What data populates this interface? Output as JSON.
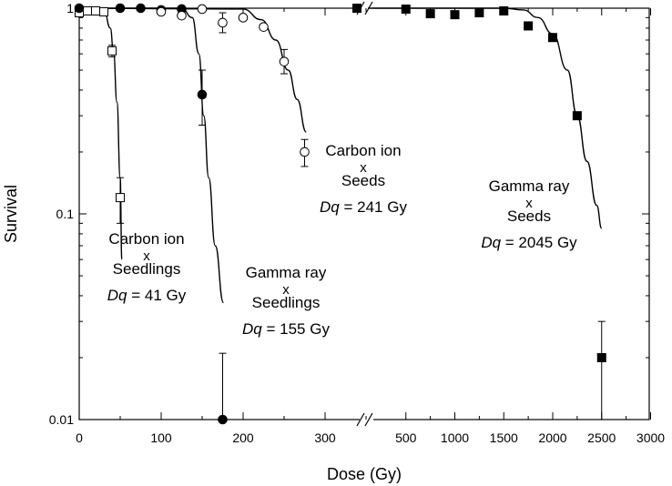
{
  "chart_data": {
    "type": "scatter",
    "title": "",
    "xlabel": "Dose (Gy)",
    "ylabel": "Survival",
    "yscale": "log",
    "ylim": [
      0.01,
      1
    ],
    "xaxis_break": true,
    "xlim_left": [
      0,
      350
    ],
    "xlim_right": [
      0,
      3000
    ],
    "xticks_left": [
      "0",
      "100",
      "200",
      "300"
    ],
    "xticks_right": [
      "500",
      "1000",
      "1500",
      "2000",
      "2500",
      "3000"
    ],
    "yticks": [
      "0.01",
      "0.1",
      "1"
    ],
    "grid": false,
    "legend": "none",
    "series": [
      {
        "marker": "open-square",
        "segment": "left",
        "points": [
          {
            "x": 0,
            "y": 0.95
          },
          {
            "x": 10,
            "y": 0.97
          },
          {
            "x": 20,
            "y": 0.97
          },
          {
            "x": 30,
            "y": 0.96
          },
          {
            "x": 40,
            "y": 0.62,
            "err_low": 0.58,
            "err_high": 0.66
          },
          {
            "x": 50,
            "y": 0.12,
            "err_low": 0.09,
            "err_high": 0.15
          }
        ]
      },
      {
        "marker": "filled-circle",
        "segment": "left",
        "points": [
          {
            "x": 0,
            "y": 1.0
          },
          {
            "x": 50,
            "y": 1.0
          },
          {
            "x": 75,
            "y": 1.0
          },
          {
            "x": 100,
            "y": 0.98
          },
          {
            "x": 125,
            "y": 0.99
          },
          {
            "x": 150,
            "y": 0.38,
            "err_low": 0.27,
            "err_high": 0.5
          },
          {
            "x": 175,
            "y": 0.01,
            "err_low": 0.01,
            "err_high": 0.021
          }
        ]
      },
      {
        "marker": "open-circle",
        "segment": "left",
        "points": [
          {
            "x": 100,
            "y": 0.96
          },
          {
            "x": 125,
            "y": 0.92
          },
          {
            "x": 150,
            "y": 0.99
          },
          {
            "x": 175,
            "y": 0.85,
            "err_low": 0.76,
            "err_high": 0.95
          },
          {
            "x": 200,
            "y": 0.9
          },
          {
            "x": 225,
            "y": 0.81
          },
          {
            "x": 250,
            "y": 0.55,
            "err_low": 0.48,
            "err_high": 0.63
          },
          {
            "x": 275,
            "y": 0.2,
            "err_low": 0.17,
            "err_high": 0.23
          }
        ]
      },
      {
        "marker": "filled-square",
        "segment": "right",
        "points": [
          {
            "x": 0,
            "y": 1.0
          },
          {
            "x": 500,
            "y": 0.99
          },
          {
            "x": 750,
            "y": 0.94
          },
          {
            "x": 1000,
            "y": 0.93
          },
          {
            "x": 1250,
            "y": 0.95
          },
          {
            "x": 1500,
            "y": 0.97
          },
          {
            "x": 1750,
            "y": 0.82
          },
          {
            "x": 2000,
            "y": 0.72
          },
          {
            "x": 2250,
            "y": 0.3
          },
          {
            "x": 2500,
            "y": 0.02,
            "err_low": 0.01,
            "err_high": 0.03
          }
        ]
      }
    ],
    "fit_curves": [
      {
        "segment": "left",
        "points": [
          [
            0,
            1.0
          ],
          [
            30,
            0.99
          ],
          [
            38,
            0.8
          ],
          [
            42,
            0.6
          ],
          [
            46,
            0.35
          ],
          [
            50,
            0.15
          ],
          [
            52,
            0.06
          ]
        ]
      },
      {
        "segment": "left",
        "points": [
          [
            0,
            1.0
          ],
          [
            125,
            1.0
          ],
          [
            138,
            0.9
          ],
          [
            146,
            0.6
          ],
          [
            152,
            0.3
          ],
          [
            158,
            0.15
          ],
          [
            166,
            0.07
          ],
          [
            176,
            0.037
          ]
        ]
      },
      {
        "segment": "left",
        "points": [
          [
            0,
            1.0
          ],
          [
            200,
            0.99
          ],
          [
            222,
            0.88
          ],
          [
            240,
            0.7
          ],
          [
            255,
            0.5
          ],
          [
            266,
            0.36
          ],
          [
            277,
            0.25
          ]
        ]
      },
      {
        "segment": "right",
        "points": [
          [
            0,
            1.0
          ],
          [
            1500,
            1.0
          ],
          [
            1700,
            0.98
          ],
          [
            1850,
            0.9
          ],
          [
            2000,
            0.75
          ],
          [
            2150,
            0.5
          ],
          [
            2250,
            0.3
          ],
          [
            2350,
            0.18
          ],
          [
            2450,
            0.11
          ],
          [
            2500,
            0.085
          ]
        ]
      }
    ],
    "annotations": [
      {
        "lines": [
          "Carbon ion",
          "x",
          "Seedlings"
        ],
        "dq_label": "Dq",
        "dq_value": " = 41 Gy"
      },
      {
        "lines": [
          "Gamma ray",
          "x",
          "Seedlings"
        ],
        "dq_label": "Dq",
        "dq_value": " = 155 Gy"
      },
      {
        "lines": [
          "Carbon ion",
          "x",
          "Seeds"
        ],
        "dq_label": "Dq",
        "dq_value": " = 241 Gy"
      },
      {
        "lines": [
          "Gamma ray",
          "x",
          "Seeds"
        ],
        "dq_label": "Dq",
        "dq_value": " = 2045 Gy"
      }
    ]
  }
}
